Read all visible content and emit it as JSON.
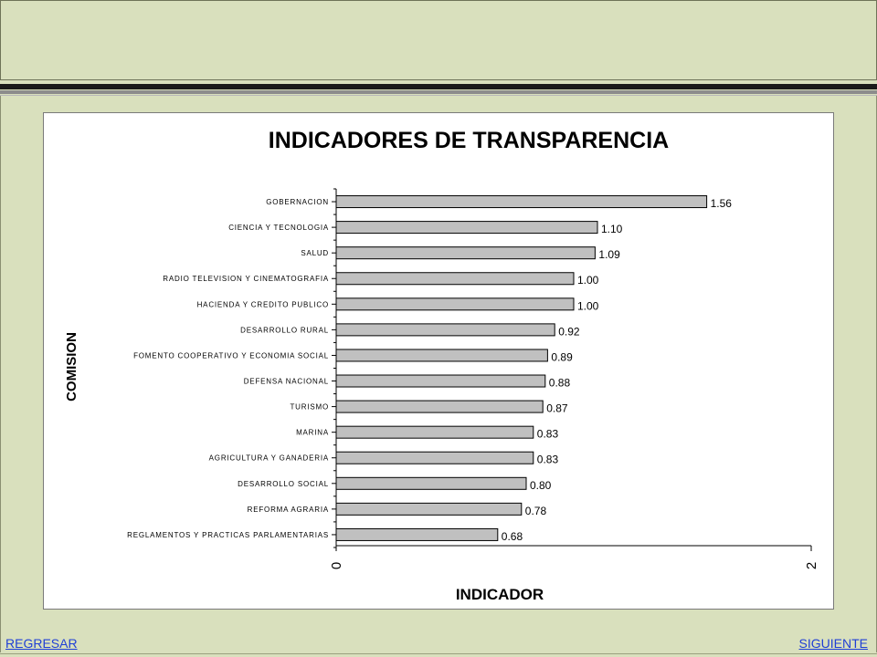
{
  "nav": {
    "back_label": "REGRESAR",
    "next_label": "SIGUIENTE"
  },
  "chart_data": {
    "type": "bar",
    "orientation": "horizontal",
    "title": "INDICADORES DE TRANSPARENCIA",
    "xlabel": "INDICADOR",
    "ylabel": "COMISION",
    "xlim": [
      0,
      2
    ],
    "x_ticks": [
      "0",
      "2"
    ],
    "grid": false,
    "legend": "none",
    "bar_color": "#c0c0c0",
    "categories": [
      "GOBERNACION",
      "CIENCIA Y TECNOLOGIA",
      "SALUD",
      "RADIO TELEVISION Y CINEMATOGRAFIA",
      "HACIENDA Y CREDITO PUBLICO",
      "DESARROLLO RURAL",
      "FOMENTO COOPERATIVO Y ECONOMIA SOCIAL",
      "DEFENSA NACIONAL",
      "TURISMO",
      "MARINA",
      "AGRICULTURA Y GANADERIA",
      "DESARROLLO SOCIAL",
      "REFORMA AGRARIA",
      "REGLAMENTOS Y PRACTICAS PARLAMENTARIAS"
    ],
    "values": [
      1.56,
      1.1,
      1.09,
      1.0,
      1.0,
      0.92,
      0.89,
      0.88,
      0.87,
      0.83,
      0.83,
      0.8,
      0.78,
      0.68
    ],
    "value_labels": [
      "1.56",
      "1.10",
      "1.09",
      "1.00",
      "1.00",
      "0.92",
      "0.89",
      "0.88",
      "0.87",
      "0.83",
      "0.83",
      "0.80",
      "0.78",
      "0.68"
    ]
  }
}
